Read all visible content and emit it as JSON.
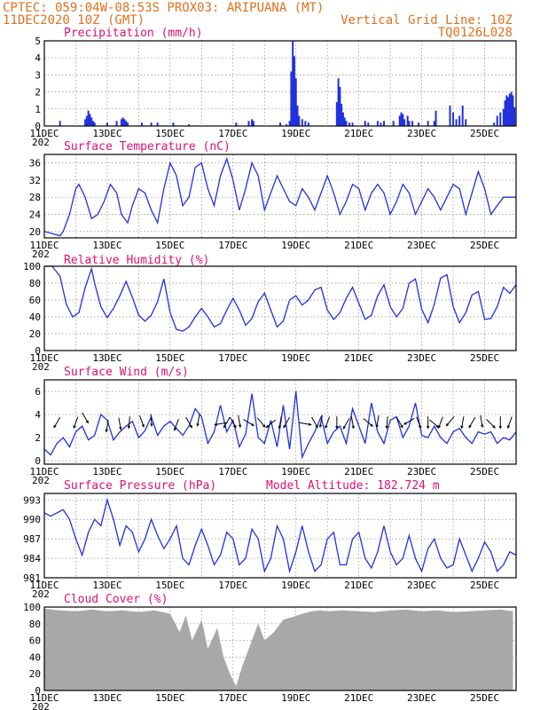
{
  "header": {
    "line1_left": "CPTEC:  059:04W-08:53S  PROX03: ARIPUANA (MT)",
    "line2_left": "11DEC2020 10Z (GMT)",
    "line2_right": "Vertical Grid Line: 10Z",
    "line3_right": "TQ0126L028"
  },
  "colors": {
    "header": "#e07020",
    "panel_title": "#e01070",
    "series": "#2030e0",
    "cloud": "#a8a8a8"
  },
  "x_axis": {
    "labels": [
      "11DEC",
      "13DEC",
      "15DEC",
      "17DEC",
      "19DEC",
      "21DEC",
      "23DEC",
      "25DEC"
    ],
    "label_days": [
      0,
      2,
      4,
      6,
      8,
      10,
      12,
      14
    ],
    "range_days": [
      0,
      15
    ],
    "cut_label": "202"
  },
  "chart_data": [
    {
      "type": "bar",
      "title": "Precipitation (mm/h)",
      "ylim": [
        0,
        5
      ],
      "yticks": [
        0,
        1,
        2,
        3,
        4,
        5
      ],
      "x": [
        0.5,
        1.3,
        1.35,
        1.4,
        1.45,
        1.5,
        1.55,
        1.6,
        2.0,
        2.3,
        2.45,
        2.5,
        2.55,
        2.6,
        2.65,
        3.1,
        3.4,
        3.6,
        4.1,
        4.6,
        6.1,
        6.5,
        6.6,
        6.65,
        7.5,
        7.7,
        7.8,
        7.85,
        7.9,
        7.95,
        8.0,
        8.05,
        8.1,
        8.2,
        8.3,
        8.4,
        9.3,
        9.35,
        9.4,
        9.45,
        9.5,
        9.55,
        9.6,
        9.7,
        9.8,
        10.2,
        10.3,
        10.6,
        10.7,
        10.8,
        11.1,
        11.3,
        11.35,
        11.4,
        11.45,
        11.55,
        11.6,
        11.7,
        11.9,
        12.2,
        12.4,
        12.45,
        12.9,
        13.0,
        13.1,
        13.2,
        13.3,
        13.4,
        14.3,
        14.4,
        14.5,
        14.6,
        14.65,
        14.7,
        14.75,
        14.8,
        14.85,
        14.9,
        14.95
      ],
      "values": [
        0.3,
        0.4,
        0.6,
        0.9,
        0.7,
        0.5,
        0.3,
        0.2,
        0.2,
        0.3,
        0.4,
        0.5,
        0.4,
        0.3,
        0.2,
        0.2,
        0.2,
        0.2,
        0.2,
        0.1,
        0.2,
        0.3,
        0.4,
        0.3,
        0.2,
        0.1,
        0.3,
        3.2,
        5.0,
        4.1,
        2.8,
        1.2,
        0.6,
        0.4,
        0.3,
        0.2,
        1.4,
        2.8,
        2.3,
        1.3,
        0.8,
        0.5,
        0.3,
        0.2,
        0.2,
        0.3,
        0.2,
        0.3,
        0.2,
        0.3,
        0.3,
        0.6,
        0.8,
        0.7,
        0.4,
        0.6,
        0.3,
        0.3,
        0.2,
        0.3,
        0.3,
        0.9,
        1.2,
        0.8,
        0.4,
        0.6,
        1.2,
        0.4,
        0.2,
        0.6,
        0.8,
        1.0,
        1.5,
        1.8,
        1.7,
        1.9,
        2.0,
        1.8,
        1.1
      ]
    },
    {
      "type": "line",
      "title": "Surface Temperature (nC)",
      "ylim": [
        18.5,
        38
      ],
      "yticks": [
        20,
        24,
        28,
        32,
        36
      ],
      "x": [
        0,
        0.25,
        0.5,
        0.6,
        0.8,
        1.0,
        1.1,
        1.3,
        1.5,
        1.7,
        1.9,
        2.1,
        2.3,
        2.45,
        2.65,
        2.8,
        3.0,
        3.2,
        3.4,
        3.6,
        3.8,
        4.0,
        4.2,
        4.4,
        4.6,
        4.8,
        5.0,
        5.2,
        5.4,
        5.6,
        5.8,
        6.0,
        6.2,
        6.4,
        6.6,
        6.8,
        7.0,
        7.2,
        7.4,
        7.6,
        7.8,
        8.0,
        8.2,
        8.4,
        8.6,
        8.8,
        9.0,
        9.2,
        9.4,
        9.6,
        9.8,
        10.0,
        10.2,
        10.4,
        10.6,
        10.8,
        11.0,
        11.2,
        11.4,
        11.6,
        11.8,
        12.0,
        12.2,
        12.4,
        12.6,
        12.8,
        13.0,
        13.2,
        13.4,
        13.6,
        13.8,
        14.0,
        14.2,
        14.4,
        14.6,
        14.8,
        15.0
      ],
      "values": [
        20,
        19.5,
        19,
        20,
        24,
        30,
        31,
        28,
        23,
        24,
        27,
        31,
        29,
        24,
        22,
        26,
        30,
        29,
        25,
        22,
        30,
        36,
        33,
        26,
        28,
        35,
        36,
        30,
        26,
        33,
        37,
        32,
        25,
        30,
        36,
        33,
        25,
        29,
        33,
        30,
        27,
        26,
        30,
        28,
        25,
        29,
        33,
        29,
        24,
        27,
        31,
        30,
        25,
        29,
        31,
        29,
        24,
        27,
        31,
        29,
        24,
        27,
        30,
        28,
        25,
        28,
        31,
        30,
        24,
        29,
        34,
        30,
        24,
        26,
        28,
        28,
        28
      ]
    },
    {
      "type": "line",
      "title": "Relative Humidity (%)",
      "ylim": [
        0,
        100
      ],
      "yticks": [
        0,
        20,
        40,
        60,
        80,
        100
      ],
      "x": [
        0,
        0.25,
        0.5,
        0.7,
        0.9,
        1.1,
        1.3,
        1.5,
        1.6,
        1.8,
        2.0,
        2.2,
        2.4,
        2.6,
        2.8,
        3.0,
        3.2,
        3.4,
        3.6,
        3.8,
        4.0,
        4.2,
        4.4,
        4.6,
        4.8,
        5.0,
        5.2,
        5.4,
        5.6,
        5.8,
        6.0,
        6.2,
        6.4,
        6.6,
        6.8,
        7.0,
        7.2,
        7.4,
        7.6,
        7.8,
        8.0,
        8.2,
        8.4,
        8.6,
        8.8,
        9.0,
        9.2,
        9.4,
        9.6,
        9.8,
        10.0,
        10.2,
        10.4,
        10.6,
        10.8,
        11.0,
        11.2,
        11.4,
        11.6,
        11.8,
        12.0,
        12.2,
        12.4,
        12.6,
        12.8,
        13.0,
        13.2,
        13.4,
        13.6,
        13.8,
        14.0,
        14.2,
        14.4,
        14.6,
        14.8,
        15.0
      ],
      "values": [
        100,
        100,
        88,
        55,
        40,
        45,
        75,
        97,
        80,
        52,
        39,
        50,
        65,
        82,
        63,
        42,
        35,
        42,
        58,
        85,
        45,
        25,
        23,
        28,
        40,
        50,
        40,
        28,
        32,
        48,
        62,
        48,
        30,
        38,
        58,
        68,
        48,
        28,
        35,
        60,
        65,
        54,
        60,
        72,
        75,
        48,
        37,
        45,
        62,
        75,
        56,
        37,
        42,
        65,
        78,
        52,
        40,
        50,
        80,
        85,
        49,
        33,
        55,
        86,
        90,
        52,
        33,
        45,
        66,
        70,
        37,
        38,
        52,
        75,
        68,
        78
      ]
    },
    {
      "type": "line",
      "title": "Surface Wind (m/s)",
      "ylim": [
        -0.3,
        7
      ],
      "yticks": [
        0,
        2,
        4,
        6
      ],
      "x": [
        0,
        0.2,
        0.4,
        0.6,
        0.8,
        1.0,
        1.2,
        1.4,
        1.6,
        1.8,
        2.0,
        2.2,
        2.4,
        2.6,
        2.8,
        3.0,
        3.2,
        3.4,
        3.6,
        3.8,
        4.0,
        4.2,
        4.4,
        4.6,
        4.8,
        5.0,
        5.2,
        5.4,
        5.6,
        5.8,
        6.0,
        6.2,
        6.4,
        6.6,
        6.8,
        7.0,
        7.2,
        7.4,
        7.6,
        7.8,
        8.0,
        8.2,
        8.4,
        8.6,
        8.8,
        9.0,
        9.2,
        9.4,
        9.6,
        9.8,
        10.0,
        10.2,
        10.4,
        10.6,
        10.8,
        11.0,
        11.2,
        11.4,
        11.6,
        11.8,
        12.0,
        12.2,
        12.4,
        12.6,
        12.8,
        13.0,
        13.2,
        13.4,
        13.6,
        13.8,
        14.0,
        14.2,
        14.4,
        14.6,
        14.8,
        15.0
      ],
      "values": [
        1.0,
        0.5,
        1.5,
        2.0,
        1.2,
        2.5,
        3.0,
        1.8,
        2.2,
        4.0,
        3.5,
        1.8,
        2.5,
        3.0,
        3.4,
        2.0,
        2.6,
        3.8,
        2.2,
        3.0,
        3.4,
        2.8,
        2.2,
        3.0,
        4.5,
        3.8,
        1.5,
        2.5,
        4.8,
        2.5,
        3.5,
        1.2,
        2.3,
        5.8,
        2.0,
        1.5,
        3.5,
        1.2,
        4.8,
        1.0,
        6.0,
        0.3,
        1.5,
        2.5,
        3.8,
        1.5,
        2.5,
        3.0,
        1.5,
        4.5,
        3.0,
        1.5,
        5.0,
        2.5,
        1.5,
        3.5,
        3.8,
        2.0,
        3.0,
        5.0,
        2.2,
        2.0,
        3.0,
        2.0,
        1.5,
        2.5,
        2.8,
        2.0,
        1.5,
        2.5,
        2.3,
        2.5,
        1.5,
        2.0,
        1.8,
        2.5
      ],
      "arrows": {
        "x": [
          0.4,
          1.0,
          1.3,
          2.0,
          2.4,
          2.7,
          3.1,
          3.4,
          4.2,
          4.6,
          4.9,
          5.6,
          5.8,
          6.0,
          6.2,
          6.5,
          6.9,
          7.2,
          7.5,
          7.7,
          8.3,
          8.6,
          8.8,
          9.0,
          9.3,
          9.6,
          9.8,
          10.3,
          10.6,
          10.9,
          11.3,
          11.6,
          11.9,
          12.2,
          12.4,
          12.6,
          12.9,
          13.3,
          13.6,
          13.9,
          14.2,
          14.5,
          14.8
        ],
        "y": [
          3.3,
          3.3,
          3.7,
          3.0,
          3.2,
          3.3,
          3.4,
          3.5,
          3.1,
          3.3,
          3.5,
          3.2,
          3.3,
          3.3,
          3.4,
          3.3,
          3.3,
          3.2,
          3.3,
          3.3,
          3.2,
          3.3,
          3.4,
          3.3,
          3.3,
          3.2,
          3.3,
          3.3,
          3.4,
          3.3,
          3.3,
          3.4,
          3.3,
          3.3,
          3.2,
          3.3,
          3.4,
          3.3,
          3.3,
          3.4,
          3.2,
          3.3,
          3.3
        ],
        "deg": [
          120,
          110,
          60,
          100,
          80,
          95,
          70,
          85,
          110,
          60,
          100,
          170,
          120,
          60,
          80,
          30,
          50,
          140,
          100,
          120,
          10,
          60,
          100,
          110,
          90,
          120,
          80,
          40,
          100,
          95,
          60,
          150,
          70,
          90,
          40,
          110,
          130,
          100,
          120,
          80,
          45,
          90,
          110
        ]
      }
    },
    {
      "type": "line",
      "title": "Surface Pressure (hPa)",
      "annotation": "Model Altitude: 182.724  m",
      "ylim": [
        981,
        994
      ],
      "yticks": [
        981,
        984,
        987,
        990,
        993
      ],
      "x": [
        0,
        0.2,
        0.4,
        0.6,
        0.8,
        1.0,
        1.2,
        1.4,
        1.6,
        1.8,
        2.0,
        2.2,
        2.4,
        2.6,
        2.8,
        3.0,
        3.2,
        3.4,
        3.6,
        3.8,
        4.0,
        4.2,
        4.4,
        4.6,
        4.8,
        5.0,
        5.2,
        5.4,
        5.6,
        5.8,
        6.0,
        6.2,
        6.4,
        6.6,
        6.8,
        7.0,
        7.2,
        7.4,
        7.6,
        7.8,
        8.0,
        8.2,
        8.4,
        8.6,
        8.8,
        9.0,
        9.2,
        9.4,
        9.6,
        9.8,
        10.0,
        10.2,
        10.4,
        10.6,
        10.8,
        11.0,
        11.2,
        11.4,
        11.6,
        11.8,
        12.0,
        12.2,
        12.4,
        12.6,
        12.8,
        13.0,
        13.2,
        13.4,
        13.6,
        13.8,
        14.0,
        14.2,
        14.4,
        14.6,
        14.8,
        15.0
      ],
      "values": [
        991,
        990.5,
        991,
        991.5,
        990,
        987,
        984.5,
        988,
        990,
        989,
        993,
        990,
        986,
        989,
        988,
        985,
        987,
        990,
        987.5,
        985.5,
        987,
        989,
        984,
        983,
        986,
        988.5,
        986,
        983,
        984.5,
        988,
        987,
        983,
        984,
        988.5,
        987,
        982,
        984,
        989,
        987,
        982,
        985,
        989,
        985,
        982,
        983,
        987,
        988,
        983,
        983,
        987,
        988,
        984,
        982.5,
        985,
        989,
        985,
        983,
        984,
        987.5,
        984,
        982,
        985.5,
        987,
        984,
        982.5,
        983,
        987,
        984.5,
        982,
        984,
        986.5,
        985,
        982,
        983,
        985,
        984.5
      ]
    },
    {
      "type": "bar",
      "title": "Cloud Cover (%)",
      "ylim": [
        0,
        100
      ],
      "yticks": [
        0,
        20,
        40,
        60,
        80,
        100
      ],
      "x": [
        0,
        0.5,
        1.0,
        1.5,
        2.0,
        2.5,
        3.0,
        3.5,
        4.0,
        4.3,
        4.5,
        4.7,
        5.0,
        5.2,
        5.5,
        5.7,
        5.9,
        6.1,
        6.3,
        6.5,
        6.8,
        7.0,
        7.3,
        7.6,
        7.9,
        8.2,
        8.5,
        8.8,
        9.0,
        9.5,
        10.0,
        10.5,
        11.0,
        11.5,
        12.0,
        12.5,
        13.0,
        13.5,
        14.0,
        14.5,
        14.9
      ],
      "values": [
        98,
        96,
        95,
        97,
        95,
        96,
        94,
        96,
        92,
        70,
        90,
        60,
        85,
        50,
        75,
        40,
        20,
        5,
        30,
        50,
        80,
        60,
        70,
        85,
        88,
        92,
        95,
        96,
        95,
        96,
        95,
        94,
        96,
        97,
        95,
        96,
        94,
        95,
        96,
        97,
        95
      ]
    }
  ]
}
